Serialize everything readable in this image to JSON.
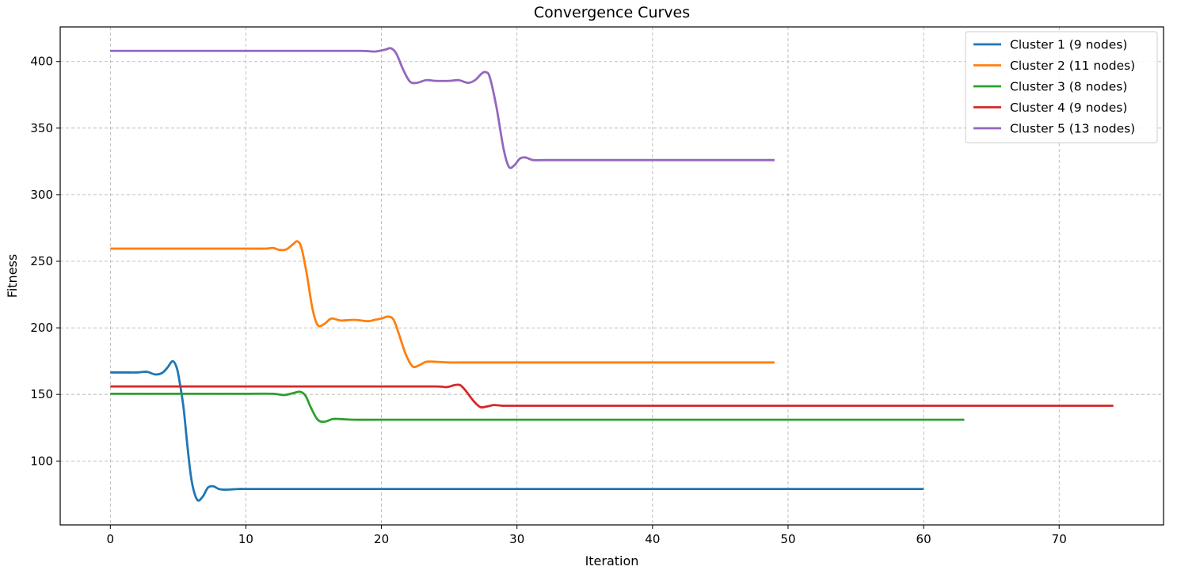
{
  "chart_data": {
    "type": "line",
    "title": "Convergence Curves",
    "xlabel": "Iteration",
    "ylabel": "Fitness",
    "xlim": [
      -3.7,
      77.7
    ],
    "ylim": [
      52,
      426
    ],
    "xticks": [
      0,
      10,
      20,
      30,
      40,
      50,
      60,
      70
    ],
    "yticks": [
      100,
      150,
      200,
      250,
      300,
      350,
      400
    ],
    "grid": true,
    "legend_position": "top-right",
    "series": [
      {
        "name": "Cluster 1 (9 nodes)",
        "color": "#1f77b4",
        "points": [
          [
            0,
            166.5
          ],
          [
            1,
            166.5
          ],
          [
            2,
            166.5
          ],
          [
            2.7,
            167
          ],
          [
            3.3,
            165
          ],
          [
            3.8,
            166
          ],
          [
            4.2,
            170
          ],
          [
            4.6,
            175
          ],
          [
            4.9,
            170
          ],
          [
            5.1,
            160
          ],
          [
            5.4,
            140
          ],
          [
            5.7,
            110
          ],
          [
            6,
            85
          ],
          [
            6.4,
            71
          ],
          [
            6.8,
            73
          ],
          [
            7.2,
            80
          ],
          [
            7.6,
            81
          ],
          [
            8,
            79
          ],
          [
            8.5,
            78.5
          ],
          [
            9.5,
            79
          ],
          [
            10,
            79
          ],
          [
            15,
            79
          ],
          [
            20,
            79
          ],
          [
            30,
            79
          ],
          [
            40,
            79
          ],
          [
            50,
            79
          ],
          [
            60,
            79
          ]
        ]
      },
      {
        "name": "Cluster 2 (11 nodes)",
        "color": "#ff7f0e",
        "points": [
          [
            0,
            259.5
          ],
          [
            5,
            259.5
          ],
          [
            10,
            259.5
          ],
          [
            11.5,
            259.5
          ],
          [
            12,
            260
          ],
          [
            12.5,
            258.5
          ],
          [
            13,
            259
          ],
          [
            13.5,
            263
          ],
          [
            13.8,
            265
          ],
          [
            14.1,
            260
          ],
          [
            14.5,
            240
          ],
          [
            14.9,
            215
          ],
          [
            15.3,
            202
          ],
          [
            15.8,
            203
          ],
          [
            16.3,
            207
          ],
          [
            17,
            205.5
          ],
          [
            18,
            206
          ],
          [
            19,
            205
          ],
          [
            19.5,
            206
          ],
          [
            20,
            207
          ],
          [
            20.5,
            208.5
          ],
          [
            20.9,
            206
          ],
          [
            21.3,
            195
          ],
          [
            21.8,
            180
          ],
          [
            22.3,
            171
          ],
          [
            22.8,
            172
          ],
          [
            23.3,
            174.5
          ],
          [
            24,
            174.5
          ],
          [
            25,
            174
          ],
          [
            26,
            174
          ],
          [
            30,
            174
          ],
          [
            40,
            174
          ],
          [
            49,
            174
          ]
        ]
      },
      {
        "name": "Cluster 3 (8 nodes)",
        "color": "#2ca02c",
        "points": [
          [
            0,
            150.5
          ],
          [
            5,
            150.5
          ],
          [
            10,
            150.5
          ],
          [
            12,
            150.5
          ],
          [
            12.8,
            149.5
          ],
          [
            13.5,
            151
          ],
          [
            14,
            152
          ],
          [
            14.4,
            149
          ],
          [
            14.8,
            140
          ],
          [
            15.3,
            131
          ],
          [
            15.8,
            129.5
          ],
          [
            16.4,
            131.5
          ],
          [
            17,
            131.5
          ],
          [
            18,
            131
          ],
          [
            20,
            131
          ],
          [
            30,
            131
          ],
          [
            40,
            131
          ],
          [
            50,
            131
          ],
          [
            63,
            131
          ]
        ]
      },
      {
        "name": "Cluster 4 (9 nodes)",
        "color": "#d62728",
        "points": [
          [
            0,
            156
          ],
          [
            5,
            156
          ],
          [
            10,
            156
          ],
          [
            20,
            156
          ],
          [
            24,
            156
          ],
          [
            24.8,
            155.5
          ],
          [
            25.4,
            157
          ],
          [
            25.8,
            157
          ],
          [
            26.2,
            153
          ],
          [
            26.8,
            145
          ],
          [
            27.3,
            140.5
          ],
          [
            27.8,
            141
          ],
          [
            28.3,
            142
          ],
          [
            29,
            141.5
          ],
          [
            30,
            141.5
          ],
          [
            40,
            141.5
          ],
          [
            50,
            141.5
          ],
          [
            60,
            141.5
          ],
          [
            70,
            141.5
          ],
          [
            74,
            141.5
          ]
        ]
      },
      {
        "name": "Cluster 5 (13 nodes)",
        "color": "#9467bd",
        "points": [
          [
            0,
            408
          ],
          [
            5,
            408
          ],
          [
            10,
            408
          ],
          [
            15,
            408
          ],
          [
            18.5,
            408
          ],
          [
            19.5,
            407.5
          ],
          [
            20.3,
            409
          ],
          [
            20.7,
            410
          ],
          [
            21.1,
            406
          ],
          [
            21.6,
            394
          ],
          [
            22.1,
            385
          ],
          [
            22.6,
            384
          ],
          [
            23.3,
            386
          ],
          [
            24,
            385.5
          ],
          [
            25,
            385.5
          ],
          [
            25.7,
            386
          ],
          [
            26.4,
            384
          ],
          [
            26.9,
            386
          ],
          [
            27.4,
            391
          ],
          [
            27.7,
            392
          ],
          [
            28,
            388
          ],
          [
            28.5,
            365
          ],
          [
            29,
            335
          ],
          [
            29.4,
            321
          ],
          [
            29.8,
            322
          ],
          [
            30.2,
            327
          ],
          [
            30.6,
            328
          ],
          [
            31.2,
            326
          ],
          [
            32,
            326
          ],
          [
            35,
            326
          ],
          [
            40,
            326
          ],
          [
            45,
            326
          ],
          [
            49,
            326
          ]
        ]
      }
    ]
  }
}
